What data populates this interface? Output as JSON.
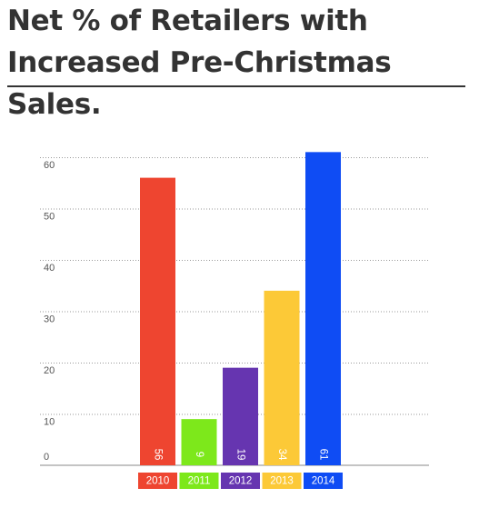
{
  "title_line1": "Net % of Retailers with",
  "title_line2": "Increased Pre-Christmas Sales.",
  "chart_data": {
    "type": "bar",
    "title": "Net % of Retailers with Increased Pre-Christmas Sales.",
    "xlabel": "",
    "ylabel": "",
    "categories": [
      "2010",
      "2011",
      "2012",
      "2013",
      "2014"
    ],
    "values": [
      56,
      9,
      19,
      34,
      61
    ],
    "value_labels": [
      "56",
      "9",
      "19",
      "34",
      "61"
    ],
    "colors": [
      "#ee4530",
      "#7de81b",
      "#6635b0",
      "#fcc937",
      "#0f4cf4"
    ],
    "ylim": [
      0,
      60
    ],
    "yticks": [
      0,
      10,
      20,
      30,
      40,
      50,
      60
    ],
    "ytick_labels": [
      "0",
      "10",
      "20",
      "30",
      "40",
      "50",
      "60"
    ],
    "grid": true,
    "legend": "none"
  }
}
